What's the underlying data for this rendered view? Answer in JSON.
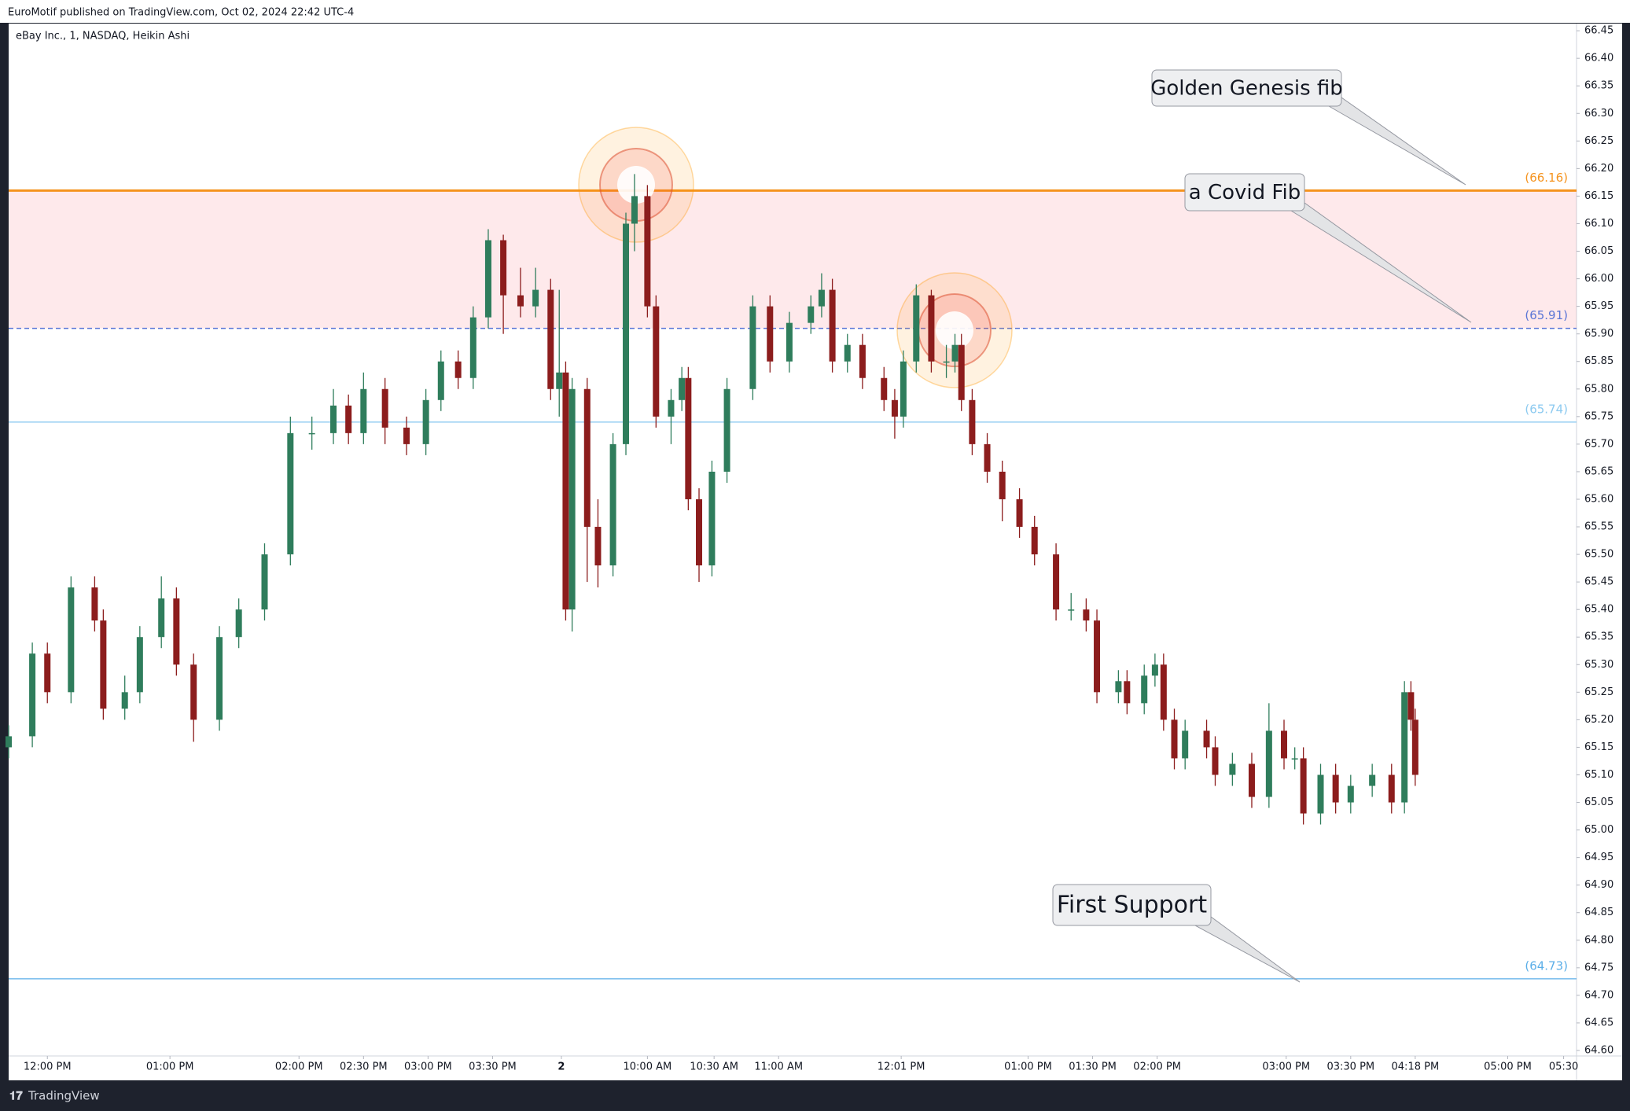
{
  "header": "EuroMotif published on TradingView.com, Oct 02, 2024 22:42 UTC-4",
  "footer": "TradingView",
  "chart_data": {
    "type": "candlestick",
    "title": "eBay Inc., 1, NASDAQ, Heikin Ashi",
    "up_color": "#2f7d5c",
    "down_color": "#8c1d1d",
    "x": [
      0,
      11,
      18,
      29,
      40,
      44,
      54,
      61,
      71,
      78,
      86,
      98,
      107,
      119,
      131,
      141,
      151,
      158,
      165,
      175,
      185,
      194,
      201,
      209,
      216,
      223,
      230,
      238,
      245,
      252,
      256,
      259,
      262,
      269,
      274,
      281,
      287,
      291,
      297,
      301,
      308,
      313,
      316,
      321,
      327,
      334,
      346,
      354,
      363,
      373,
      378,
      383,
      390,
      397,
      407,
      412,
      416,
      422,
      429,
      436,
      440,
      443,
      448,
      455,
      462,
      470,
      477,
      487,
      494,
      501,
      506,
      516,
      520,
      528,
      533,
      537,
      542,
      547,
      557,
      561,
      569,
      578,
      586,
      593,
      598,
      602,
      610,
      617,
      624,
      634,
      643,
      649,
      652,
      654
    ],
    "open": [
      65.15,
      65.17,
      65.32,
      65.25,
      65.44,
      65.38,
      65.22,
      65.25,
      65.35,
      65.42,
      65.3,
      65.2,
      65.35,
      65.4,
      65.5,
      65.72,
      65.72,
      65.77,
      65.72,
      65.8,
      65.73,
      65.7,
      65.78,
      65.85,
      65.82,
      65.93,
      66.07,
      65.97,
      65.95,
      65.98,
      65.8,
      65.83,
      65.4,
      65.8,
      65.55,
      65.48,
      65.7,
      66.1,
      66.15,
      65.95,
      65.75,
      65.78,
      65.82,
      65.6,
      65.48,
      65.65,
      65.8,
      65.95,
      65.85,
      65.92,
      65.95,
      65.98,
      65.85,
      65.88,
      65.82,
      65.78,
      65.75,
      65.85,
      65.97,
      65.85,
      65.85,
      65.88,
      65.78,
      65.7,
      65.65,
      65.6,
      65.55,
      65.5,
      65.4,
      65.4,
      65.38,
      65.25,
      65.27,
      65.23,
      65.28,
      65.3,
      65.2,
      65.13,
      65.18,
      65.15,
      65.1,
      65.12,
      65.06,
      65.18,
      65.13,
      65.13,
      65.03,
      65.1,
      65.05,
      65.08,
      65.1,
      65.05,
      65.25,
      65.2
    ],
    "high": [
      65.19,
      65.34,
      65.34,
      65.46,
      65.46,
      65.4,
      65.28,
      65.37,
      65.46,
      65.44,
      65.32,
      65.37,
      65.42,
      65.52,
      65.75,
      65.75,
      65.8,
      65.79,
      65.83,
      65.82,
      65.75,
      65.8,
      65.87,
      65.87,
      65.95,
      66.09,
      66.08,
      66.02,
      66.02,
      66,
      65.98,
      65.85,
      65.82,
      65.82,
      65.6,
      65.72,
      66.12,
      66.19,
      66.17,
      65.97,
      65.8,
      65.84,
      65.84,
      65.62,
      65.67,
      65.82,
      65.97,
      65.97,
      65.94,
      65.97,
      66.01,
      66,
      65.9,
      65.9,
      65.84,
      65.8,
      65.87,
      65.99,
      65.98,
      65.88,
      65.9,
      65.9,
      65.8,
      65.72,
      65.67,
      65.62,
      65.57,
      65.52,
      65.43,
      65.42,
      65.4,
      65.29,
      65.29,
      65.3,
      65.32,
      65.32,
      65.22,
      65.2,
      65.2,
      65.17,
      65.14,
      65.14,
      65.23,
      65.2,
      65.15,
      65.15,
      65.12,
      65.12,
      65.1,
      65.12,
      65.12,
      65.27,
      65.27,
      65.22
    ],
    "low": [
      65.13,
      65.15,
      65.23,
      65.23,
      65.36,
      65.2,
      65.2,
      65.23,
      65.33,
      65.28,
      65.16,
      65.18,
      65.33,
      65.38,
      65.48,
      65.69,
      65.7,
      65.7,
      65.7,
      65.7,
      65.68,
      65.68,
      65.76,
      65.8,
      65.8,
      65.91,
      65.9,
      65.93,
      65.93,
      65.78,
      65.75,
      65.38,
      65.36,
      65.45,
      65.44,
      65.46,
      65.68,
      66.05,
      65.93,
      65.73,
      65.7,
      65.76,
      65.58,
      65.45,
      65.46,
      65.63,
      65.78,
      65.83,
      65.83,
      65.9,
      65.93,
      65.83,
      65.83,
      65.8,
      65.76,
      65.71,
      65.73,
      65.83,
      65.83,
      65.82,
      65.83,
      65.76,
      65.68,
      65.63,
      65.56,
      65.53,
      65.48,
      65.38,
      65.38,
      65.36,
      65.23,
      65.23,
      65.21,
      65.21,
      65.26,
      65.18,
      65.11,
      65.11,
      65.13,
      65.08,
      65.08,
      65.04,
      65.04,
      65.11,
      65.11,
      65.01,
      65.01,
      65.03,
      65.03,
      65.06,
      65.03,
      65.03,
      65.18,
      65.08
    ],
    "close": [
      65.17,
      65.32,
      65.25,
      65.44,
      65.38,
      65.22,
      65.25,
      65.35,
      65.42,
      65.3,
      65.2,
      65.35,
      65.4,
      65.5,
      65.72,
      65.72,
      65.77,
      65.72,
      65.8,
      65.73,
      65.7,
      65.78,
      65.85,
      65.82,
      65.93,
      66.07,
      65.97,
      65.95,
      65.98,
      65.8,
      65.83,
      65.4,
      65.8,
      65.55,
      65.48,
      65.7,
      66.1,
      66.15,
      65.95,
      65.75,
      65.78,
      65.82,
      65.6,
      65.48,
      65.65,
      65.8,
      65.95,
      65.85,
      65.92,
      65.95,
      65.98,
      65.85,
      65.88,
      65.82,
      65.78,
      65.75,
      65.85,
      65.97,
      65.85,
      65.85,
      65.88,
      65.78,
      65.7,
      65.65,
      65.6,
      65.55,
      65.5,
      65.4,
      65.4,
      65.38,
      65.25,
      65.27,
      65.23,
      65.28,
      65.3,
      65.2,
      65.13,
      65.18,
      65.15,
      65.1,
      65.12,
      65.06,
      65.18,
      65.13,
      65.13,
      65.03,
      65.1,
      65.05,
      65.08,
      65.1,
      65.05,
      65.25,
      65.2,
      65.1
    ],
    "xlim": [
      0,
      729
    ],
    "xticks": [
      {
        "value": 18,
        "label": "12:00 PM"
      },
      {
        "value": 75,
        "label": "01:00 PM"
      },
      {
        "value": 135,
        "label": "02:00 PM"
      },
      {
        "value": 165,
        "label": "02:30 PM"
      },
      {
        "value": 195,
        "label": "03:00 PM"
      },
      {
        "value": 225,
        "label": "03:30 PM"
      },
      {
        "value": 257,
        "label": "2"
      },
      {
        "value": 297,
        "label": "10:00 AM"
      },
      {
        "value": 328,
        "label": "10:30 AM"
      },
      {
        "value": 358,
        "label": "11:00 AM"
      },
      {
        "value": 415,
        "label": "12:01 PM"
      },
      {
        "value": 474,
        "label": "01:00 PM"
      },
      {
        "value": 504,
        "label": "01:30 PM"
      },
      {
        "value": 534,
        "label": "02:00 PM"
      },
      {
        "value": 594,
        "label": "03:00 PM"
      },
      {
        "value": 624,
        "label": "03:30 PM"
      },
      {
        "value": 654,
        "label": "04:18 PM"
      },
      {
        "value": 697,
        "label": "05:00 PM"
      },
      {
        "value": 723,
        "label": "05:30"
      }
    ],
    "ylim": [
      64.59,
      66.463
    ],
    "yticks": [
      66.45,
      {
        "value": 66.4,
        "label": "66.40"
      },
      66.35,
      {
        "value": 66.3,
        "label": "66.30"
      },
      66.25,
      {
        "value": 66.2,
        "label": "66.20"
      },
      66.15,
      {
        "value": 66.1,
        "label": "66.10"
      },
      66.05,
      {
        "value": 66,
        "label": "66.00"
      },
      65.95,
      {
        "value": 65.9,
        "label": "65.90"
      },
      65.85,
      {
        "value": 65.8,
        "label": "65.80"
      },
      65.75,
      {
        "value": 65.7,
        "label": "65.70"
      },
      65.65,
      {
        "value": 65.6,
        "label": "65.60"
      },
      65.55,
      {
        "value": 65.5,
        "label": "65.50"
      },
      65.45,
      {
        "value": 65.4,
        "label": "65.40"
      },
      65.35,
      {
        "value": 65.3,
        "label": "65.30"
      },
      65.25,
      {
        "value": 65.2,
        "label": "65.20"
      },
      65.15,
      {
        "value": 65.1,
        "label": "65.10"
      },
      65.05,
      {
        "value": 65,
        "label": "65.00"
      },
      64.95,
      {
        "value": 64.9,
        "label": "64.90"
      },
      64.85,
      {
        "value": 64.8,
        "label": "64.80"
      },
      64.75,
      {
        "value": 64.7,
        "label": "64.70"
      },
      64.65,
      {
        "value": 64.6,
        "label": "64.60"
      }
    ],
    "levels": [
      {
        "value": 66.16,
        "label": "(66.16)",
        "color": "#f5931e",
        "dash": false
      },
      {
        "value": 65.91,
        "label": "(65.91)",
        "color": "#5b76d6",
        "dash": true
      },
      {
        "value": 65.74,
        "label": "(65.74)",
        "color": "#8ccaf0",
        "dash": false
      },
      {
        "value": 64.73,
        "label": "(64.73)",
        "color": "#5aaee8",
        "dash": false
      }
    ],
    "annotations": [
      "Golden Genesis fib",
      "a Covid Fib",
      "First Support"
    ]
  }
}
